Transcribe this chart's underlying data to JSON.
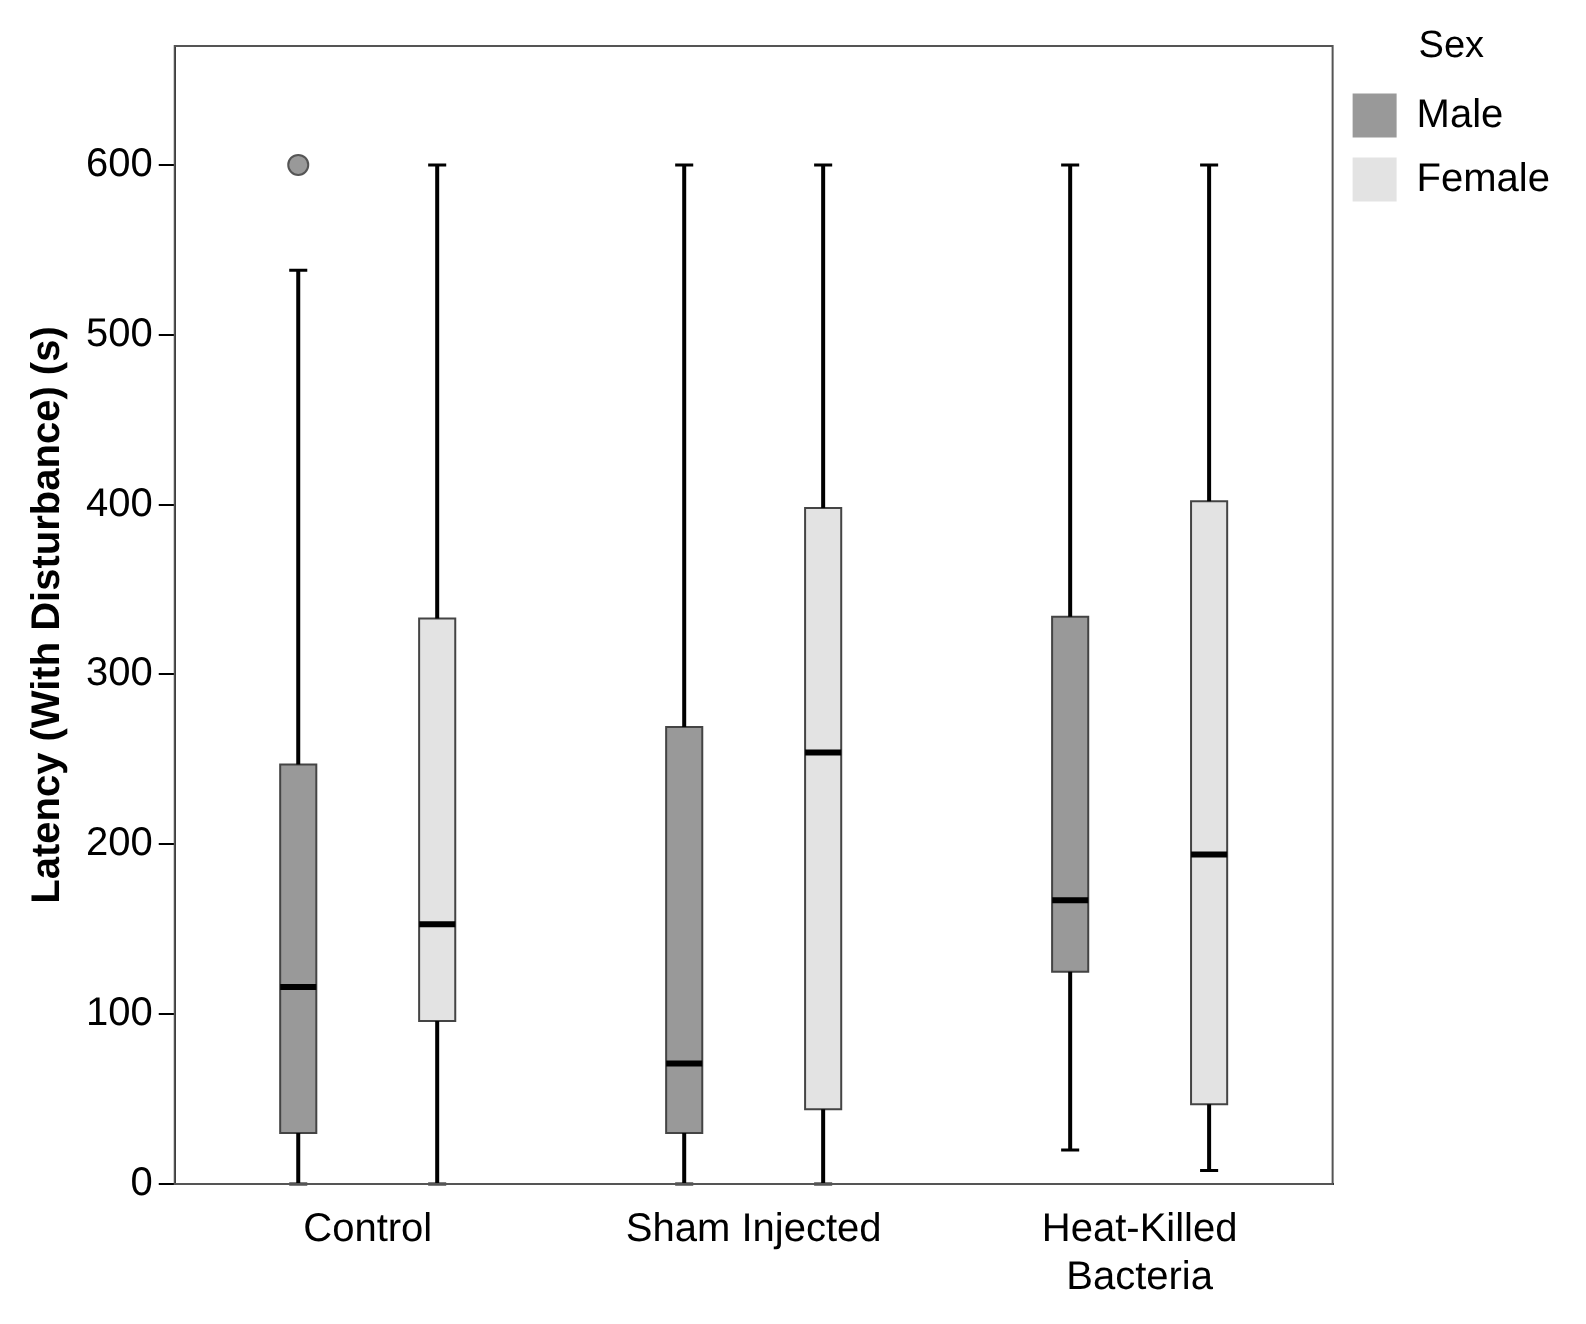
{
  "chart_data": {
    "type": "box",
    "ylabel": "Latency (With Disturbance) (s)",
    "legend_title": "Sex",
    "legend": "top right",
    "grid": false,
    "categories": [
      "Control",
      "Sham Injected",
      "Heat-Killed Bacteria"
    ],
    "ylim": [
      0,
      670
    ],
    "yticks": [
      0,
      100,
      200,
      300,
      400,
      500,
      600
    ],
    "series": [
      {
        "name": "Male",
        "color": "#999999",
        "boxes": [
          {
            "low": 0,
            "q1": 30,
            "median": 116,
            "q3": 247,
            "high": 538,
            "outliers": [
              600
            ]
          },
          {
            "low": 0,
            "q1": 30,
            "median": 71,
            "q3": 269,
            "high": 600
          },
          {
            "low": 20,
            "q1": 125,
            "median": 167,
            "q3": 334,
            "high": 600
          }
        ]
      },
      {
        "name": "Female",
        "color": "#e3e3e3",
        "boxes": [
          {
            "low": 0,
            "q1": 96,
            "median": 153,
            "q3": 333,
            "high": 600
          },
          {
            "low": 0,
            "q1": 44,
            "median": 254,
            "q3": 398,
            "high": 600
          },
          {
            "low": 8,
            "q1": 47,
            "median": 194,
            "q3": 402,
            "high": 600
          }
        ]
      }
    ]
  }
}
